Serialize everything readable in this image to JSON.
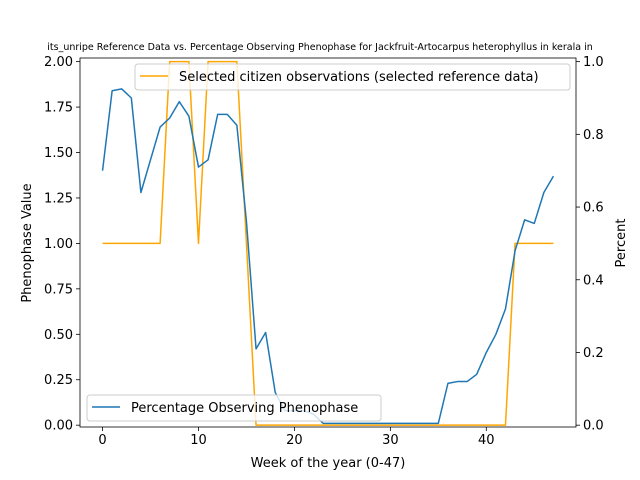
{
  "chart_data": {
    "type": "line",
    "title": "its_unripe Reference Data vs. Percentage Observing Phenophase for Jackfruit-Artocarpus heterophyllus in kerala in",
    "xlabel": "Week of the year (0-47)",
    "ylabel_left": "Phenophase Value",
    "ylabel_right": "Percent",
    "xlim": [
      -2.35,
      49.35
    ],
    "ylim_left": [
      -0.01,
      2.02
    ],
    "ylim_right": [
      -0.005,
      1.01
    ],
    "x_ticks": [
      0,
      10,
      20,
      30,
      40
    ],
    "y_ticks_left": [
      0.0,
      0.25,
      0.5,
      0.75,
      1.0,
      1.25,
      1.5,
      1.75,
      2.0
    ],
    "y_ticks_right": [
      0.0,
      0.2,
      0.4,
      0.6,
      0.8,
      1.0
    ],
    "y_tick_labels_left": [
      "0.00",
      "0.25",
      "0.50",
      "0.75",
      "1.00",
      "1.25",
      "1.50",
      "1.75",
      "2.00"
    ],
    "y_tick_labels_right": [
      "0.0",
      "0.2",
      "0.4",
      "0.6",
      "0.8",
      "1.0"
    ],
    "grid": false,
    "series": [
      {
        "name": "Selected citizen observations (selected reference data)",
        "axis": "left",
        "color": "#ffa500",
        "legend_position": "upper-right",
        "x": [
          0,
          6,
          7,
          8,
          9,
          10,
          11,
          12,
          13,
          14,
          15,
          16,
          17,
          40,
          41,
          42,
          43,
          44,
          45,
          46,
          47
        ],
        "values": [
          1.0,
          1.0,
          2.0,
          2.0,
          2.0,
          1.0,
          2.0,
          2.0,
          2.0,
          2.0,
          1.0,
          0.0,
          0.0,
          0.0,
          0.0,
          0.0,
          1.0,
          1.0,
          1.0,
          1.0,
          1.0
        ]
      },
      {
        "name": "Percentage Observing Phenophase",
        "axis": "right",
        "color": "#1f77b4",
        "legend_position": "lower-left",
        "x": [
          0,
          1,
          2,
          3,
          4,
          5,
          6,
          7,
          8,
          9,
          10,
          11,
          12,
          13,
          14,
          15,
          16,
          17,
          18,
          19,
          20,
          21,
          22,
          23,
          24,
          25,
          26,
          27,
          28,
          29,
          30,
          31,
          32,
          33,
          34,
          35,
          36,
          37,
          38,
          39,
          40,
          41,
          42,
          43,
          44,
          45,
          46,
          47
        ],
        "values": [
          0.7,
          0.92,
          0.925,
          0.9,
          0.64,
          0.73,
          0.82,
          0.845,
          0.89,
          0.85,
          0.71,
          0.73,
          0.855,
          0.855,
          0.825,
          0.56,
          0.21,
          0.255,
          0.09,
          0.04,
          0.04,
          0.04,
          0.03,
          0.005,
          0.005,
          0.005,
          0.005,
          0.005,
          0.005,
          0.005,
          0.005,
          0.005,
          0.005,
          0.005,
          0.005,
          0.005,
          0.115,
          0.12,
          0.12,
          0.14,
          0.2,
          0.25,
          0.32,
          0.48,
          0.565,
          0.555,
          0.64,
          0.685
        ]
      }
    ]
  }
}
